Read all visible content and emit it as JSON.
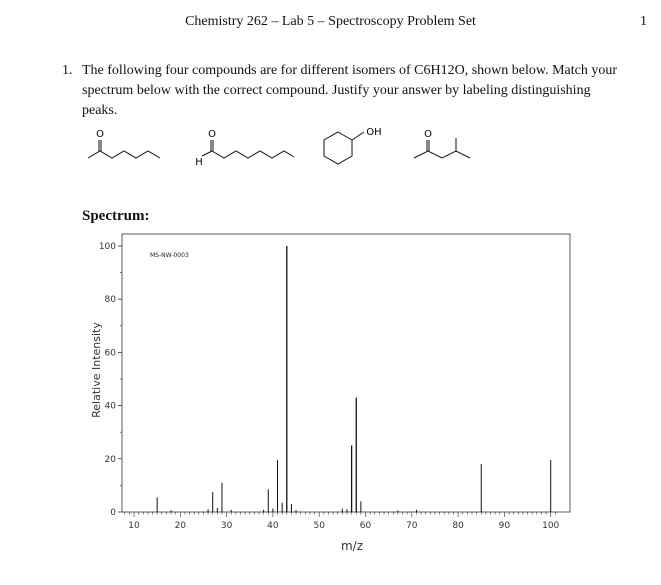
{
  "header": {
    "title": "Chemistry 262 – Lab 5 – Spectroscopy Problem Set",
    "page_number": "1"
  },
  "question": {
    "number": "1.",
    "text": "The following four compounds are for different isomers of C6H12O, shown below. Match your spectrum below with the correct compound. Justify your answer by labeling distinguishing peaks."
  },
  "structures": [
    {
      "atom_label": "O"
    },
    {
      "atom_label": "O",
      "atom_label_2": "H"
    },
    {
      "atom_label": "OH"
    },
    {
      "atom_label": "O"
    }
  ],
  "spectrum_label": "Spectrum:",
  "chart_data": {
    "type": "bar",
    "annotation": "MS-NW-0003",
    "xlabel": "m/z",
    "ylabel": "Relative Intensity",
    "xlim": [
      7,
      102
    ],
    "ylim": [
      0,
      100
    ],
    "x_ticks": [
      10,
      20,
      30,
      40,
      50,
      60,
      70,
      80,
      90,
      100
    ],
    "y_ticks": [
      0,
      20,
      40,
      60,
      80,
      100
    ],
    "grid": false,
    "peaks": [
      {
        "mz": 15,
        "intensity": 5.5
      },
      {
        "mz": 18,
        "intensity": 0.6
      },
      {
        "mz": 26,
        "intensity": 1.0
      },
      {
        "mz": 27,
        "intensity": 7.5
      },
      {
        "mz": 28,
        "intensity": 1.5
      },
      {
        "mz": 29,
        "intensity": 11
      },
      {
        "mz": 31,
        "intensity": 0.8
      },
      {
        "mz": 38,
        "intensity": 0.8
      },
      {
        "mz": 39,
        "intensity": 8.5
      },
      {
        "mz": 40,
        "intensity": 1.3
      },
      {
        "mz": 41,
        "intensity": 19.5
      },
      {
        "mz": 42,
        "intensity": 3.5
      },
      {
        "mz": 43,
        "intensity": 100
      },
      {
        "mz": 44,
        "intensity": 3.0
      },
      {
        "mz": 45,
        "intensity": 0.7
      },
      {
        "mz": 55,
        "intensity": 1.2
      },
      {
        "mz": 56,
        "intensity": 1.0
      },
      {
        "mz": 57,
        "intensity": 25
      },
      {
        "mz": 58,
        "intensity": 43
      },
      {
        "mz": 59,
        "intensity": 4.0
      },
      {
        "mz": 67,
        "intensity": 0.6
      },
      {
        "mz": 71,
        "intensity": 0.8
      },
      {
        "mz": 85,
        "intensity": 18
      },
      {
        "mz": 100,
        "intensity": 19.5
      }
    ]
  }
}
